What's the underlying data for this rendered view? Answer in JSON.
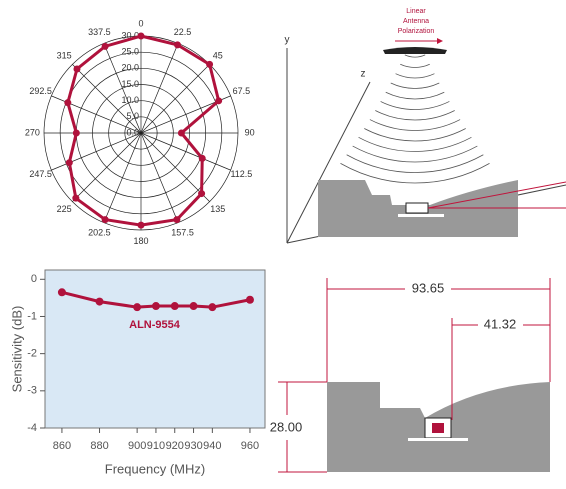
{
  "chart_data": [
    {
      "type": "polar",
      "x": [
        0,
        22.5,
        45,
        67.5,
        90,
        112.5,
        135,
        157.5,
        180,
        202.5,
        225,
        247.5,
        270,
        292.5,
        315,
        337.5
      ],
      "values": [
        30,
        29.5,
        30,
        26,
        12.5,
        20.5,
        26.5,
        29,
        28.5,
        29,
        28.5,
        24,
        20,
        24.5,
        28,
        29
      ],
      "color": "#b0123c",
      "ylim": [
        0,
        30
      ],
      "yticks": [
        {
          "value": 0,
          "label": "0.0"
        },
        {
          "value": 5,
          "label": "5.0"
        },
        {
          "value": 10,
          "label": "10.0"
        },
        {
          "value": 15,
          "label": "15.0"
        },
        {
          "value": 20,
          "label": "20.0"
        },
        {
          "value": 25,
          "label": "25.0"
        },
        {
          "value": 30,
          "label": "30.0"
        }
      ]
    },
    {
      "type": "line",
      "y_label": "Sensitivity (dB)",
      "x_label": "Frequency (MHz)",
      "x": [
        860,
        880,
        900,
        910,
        920,
        930,
        940,
        960
      ],
      "series": [
        {
          "name": "ALN-9554",
          "color": "#b0123c",
          "values": [
            -0.35,
            -0.6,
            -0.75,
            -0.72,
            -0.72,
            -0.72,
            -0.75,
            -0.55
          ]
        }
      ],
      "xlim": [
        851,
        968
      ],
      "xticks": [
        860,
        880,
        900,
        910,
        920,
        930,
        940,
        960
      ],
      "ylim": [
        -4,
        0.25
      ],
      "yticks": [
        0,
        -1,
        -2,
        -3,
        -4
      ],
      "background": "#d9e8f5"
    }
  ],
  "antenna_diagram": {
    "y_axis": "y",
    "z_axis": "z",
    "polarization": [
      "Linear",
      "Antenna",
      "Polarization"
    ]
  },
  "dimension_diagram": {
    "width": "93.65",
    "offset": "41.32",
    "height": "28.00"
  }
}
